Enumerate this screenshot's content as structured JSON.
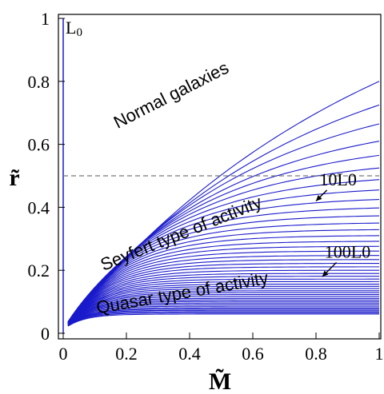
{
  "chart_data": {
    "type": "line",
    "title": "",
    "xlabel": "M̃",
    "ylabel": "r̃",
    "xlim": [
      0,
      1
    ],
    "ylim": [
      0,
      1
    ],
    "xticks": [
      "0",
      "0.2",
      "0.4",
      "0.6",
      "0.8",
      "1"
    ],
    "yticks": [
      "0",
      "0.2",
      "0.4",
      "0.6",
      "0.8",
      "1"
    ],
    "grid": false,
    "reference_line": {
      "y": 0.5,
      "style": "dashed"
    },
    "vertical_line": {
      "x": 0,
      "label": "L0"
    },
    "curve_family": {
      "color": "#1a1acc",
      "endpoint_values_at_x1": [
        0.8,
        0.725,
        0.665,
        0.61,
        0.565,
        0.525,
        0.488,
        0.455,
        0.425,
        0.398,
        0.373,
        0.35,
        0.329,
        0.31,
        0.292,
        0.276,
        0.261,
        0.247,
        0.234,
        0.222,
        0.211,
        0.2,
        0.19,
        0.181,
        0.172,
        0.164,
        0.156,
        0.149,
        0.142,
        0.135,
        0.129,
        0.123,
        0.117,
        0.111,
        0.106,
        0.101,
        0.096,
        0.091,
        0.086,
        0.081,
        0.077,
        0.073,
        0.069,
        0.065,
        0.061
      ]
    },
    "annotations": [
      {
        "text": "Normal galaxies",
        "x": 0.35,
        "y": 0.74,
        "angle": -27,
        "font": "sans"
      },
      {
        "text": "Seyfert type of activity",
        "x": 0.38,
        "y": 0.3,
        "angle": -22,
        "font": "sans"
      },
      {
        "text": "Quasar type of activity",
        "x": 0.38,
        "y": 0.11,
        "angle": -10,
        "font": "sans"
      },
      {
        "text": "10L0",
        "x": 0.87,
        "y": 0.47,
        "font": "serif",
        "arrow_to": [
          0.8,
          0.42
        ]
      },
      {
        "text": "100L0",
        "x": 0.9,
        "y": 0.24,
        "font": "serif",
        "arrow_to": [
          0.82,
          0.18
        ]
      }
    ]
  }
}
